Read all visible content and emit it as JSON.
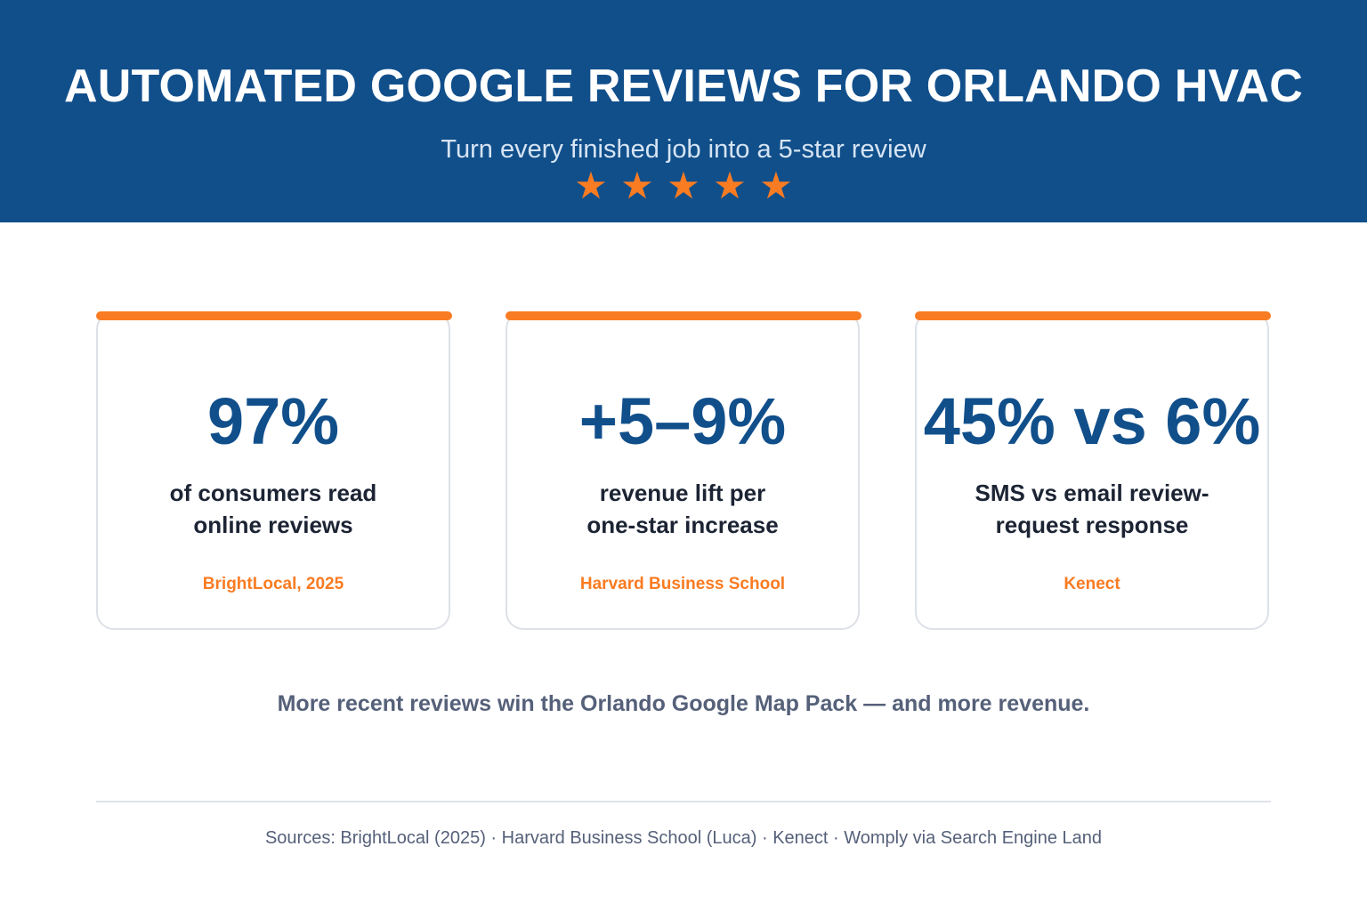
{
  "header": {
    "title": "AUTOMATED GOOGLE REVIEWS FOR ORLANDO HVAC",
    "subtitle": "Turn every finished job into a 5-star review",
    "rating": {
      "value": 5,
      "max": 5,
      "symbol": "★"
    },
    "background_color": "#114f8b",
    "star_color": "#f97b22"
  },
  "stats": [
    {
      "value": "97%",
      "description_line1": "of consumers read",
      "description_line2": "online reviews",
      "source": "BrightLocal, 2025"
    },
    {
      "value": "+5–9%",
      "description_line1": "revenue lift per",
      "description_line2": "one-star increase",
      "source": "Harvard Business School"
    },
    {
      "value": "45% vs 6%",
      "description_line1": "SMS vs email review-",
      "description_line2": "request response",
      "source": "Kenect"
    }
  ],
  "tagline": "More recent reviews win the Orlando Google Map Pack — and more revenue.",
  "sources": "Sources: BrightLocal (2025) · Harvard Business School (Luca) · Kenect · Womply via Search Engine Land",
  "colors": {
    "accent": "#f97b22",
    "stat_text": "#114f8b",
    "body_text": "#1c2434",
    "muted_text": "#556079"
  }
}
